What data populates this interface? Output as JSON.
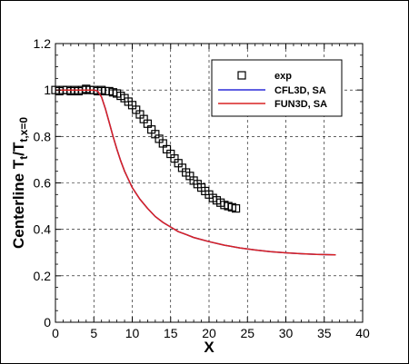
{
  "chart_data": {
    "type": "line",
    "xlabel": "X",
    "ylabel_main": "Centerline T",
    "ylabel_sub1": "t",
    "ylabel_mid": "/T",
    "ylabel_sub2": "t,x=0",
    "xlim": [
      0,
      40
    ],
    "ylim": [
      0,
      1.2
    ],
    "x_ticks": [
      "0",
      "5",
      "10",
      "15",
      "20",
      "25",
      "30",
      "35",
      "40"
    ],
    "y_ticks": [
      "0",
      "0.2",
      "0.4",
      "0.6",
      "0.8",
      "1",
      "1.2"
    ],
    "grid": true,
    "legend_position": "top-right",
    "series": [
      {
        "name": "exp",
        "style": "markers",
        "marker": "open-square",
        "color": "#000000",
        "x": [
          0,
          0.5,
          1,
          1.5,
          2,
          2.5,
          3,
          3.5,
          4,
          4.5,
          5,
          5.5,
          6,
          6.5,
          7,
          7.5,
          8,
          8.5,
          9,
          9.5,
          10,
          10.5,
          11,
          11.5,
          12,
          12.5,
          13,
          13.5,
          14,
          14.5,
          15,
          15.5,
          16,
          16.5,
          17,
          17.5,
          18,
          18.5,
          19,
          19.5,
          20,
          20.5,
          21,
          21.5,
          22,
          22.5,
          23,
          23.5
        ],
        "y": [
          1.0,
          0.995,
          1.0,
          1.0,
          0.995,
          1.0,
          0.995,
          1.0,
          1.005,
          1.0,
          1.0,
          0.995,
          1.0,
          0.995,
          0.995,
          0.99,
          0.985,
          0.975,
          0.965,
          0.95,
          0.935,
          0.915,
          0.895,
          0.875,
          0.855,
          0.83,
          0.81,
          0.79,
          0.77,
          0.745,
          0.725,
          0.705,
          0.685,
          0.665,
          0.645,
          0.63,
          0.61,
          0.595,
          0.58,
          0.565,
          0.55,
          0.535,
          0.525,
          0.515,
          0.505,
          0.5,
          0.495,
          0.49
        ]
      },
      {
        "name": "CFL3D, SA",
        "style": "line",
        "color": "#2b2bd9",
        "x": [
          0,
          1,
          2,
          3,
          4,
          5,
          5.5,
          6,
          6.5,
          7,
          7.5,
          8,
          8.5,
          9,
          9.5,
          10,
          11,
          12,
          13,
          14,
          15,
          16,
          17,
          18,
          20,
          22,
          24,
          26,
          28,
          30,
          32,
          34,
          36.5
        ],
        "y": [
          1.0,
          1.0,
          1.0,
          1.0,
          1.0,
          1.0,
          0.995,
          0.97,
          0.92,
          0.86,
          0.8,
          0.745,
          0.695,
          0.65,
          0.615,
          0.58,
          0.53,
          0.49,
          0.455,
          0.43,
          0.41,
          0.39,
          0.378,
          0.365,
          0.347,
          0.332,
          0.32,
          0.311,
          0.304,
          0.299,
          0.295,
          0.292,
          0.29
        ]
      },
      {
        "name": "FUN3D, SA",
        "style": "line",
        "color": "#d92222",
        "x": [
          0,
          1,
          2,
          3,
          4,
          5,
          5.5,
          6,
          6.5,
          7,
          7.5,
          8,
          8.5,
          9,
          9.5,
          10,
          11,
          12,
          13,
          14,
          15,
          16,
          17,
          18,
          20,
          22,
          24,
          26,
          28,
          30,
          32,
          34,
          36.5
        ],
        "y": [
          1.0,
          1.0,
          1.0,
          1.0,
          1.0,
          1.0,
          0.995,
          0.97,
          0.92,
          0.86,
          0.8,
          0.745,
          0.695,
          0.65,
          0.615,
          0.58,
          0.53,
          0.49,
          0.455,
          0.43,
          0.41,
          0.39,
          0.378,
          0.365,
          0.347,
          0.332,
          0.32,
          0.311,
          0.304,
          0.299,
          0.295,
          0.292,
          0.29
        ]
      }
    ]
  }
}
